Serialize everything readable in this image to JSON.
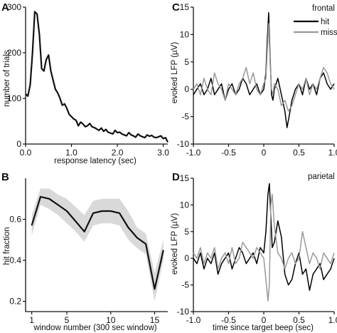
{
  "chart_data": [
    {
      "panel": "A",
      "type": "line",
      "xlabel": "response latency (sec)",
      "ylabel": "number of trials",
      "xlim": [
        0,
        3.1
      ],
      "ylim": [
        0,
        300
      ],
      "xticks": [
        0,
        1.0,
        2.0,
        3.0
      ],
      "xtick_labels": [
        "0.0",
        "1.0",
        "2.0",
        "3.0"
      ],
      "yticks": [
        0,
        100,
        200,
        300
      ],
      "ytick_labels": [
        "0",
        "100",
        "200",
        "300"
      ],
      "series": [
        {
          "color": "#111111",
          "x": [
            0.0,
            0.05,
            0.1,
            0.15,
            0.2,
            0.25,
            0.3,
            0.35,
            0.4,
            0.45,
            0.5,
            0.55,
            0.6,
            0.65,
            0.7,
            0.75,
            0.8,
            0.85,
            0.9,
            0.95,
            1.0,
            1.05,
            1.1,
            1.15,
            1.2,
            1.25,
            1.3,
            1.35,
            1.4,
            1.45,
            1.5,
            1.55,
            1.6,
            1.65,
            1.7,
            1.75,
            1.8,
            1.85,
            1.9,
            1.95,
            2.0,
            2.05,
            2.1,
            2.15,
            2.2,
            2.25,
            2.3,
            2.35,
            2.4,
            2.45,
            2.5,
            2.55,
            2.6,
            2.65,
            2.7,
            2.75,
            2.8,
            2.85,
            2.9,
            2.95,
            3.0,
            3.05,
            3.1
          ],
          "y": [
            110,
            105,
            130,
            200,
            290,
            285,
            240,
            165,
            160,
            185,
            195,
            160,
            140,
            120,
            112,
            100,
            85,
            88,
            78,
            65,
            60,
            55,
            52,
            40,
            48,
            44,
            38,
            40,
            45,
            38,
            36,
            33,
            30,
            35,
            28,
            32,
            26,
            24,
            22,
            30,
            25,
            26,
            22,
            20,
            18,
            25,
            20,
            18,
            15,
            22,
            18,
            16,
            14,
            20,
            17,
            19,
            15,
            14,
            16,
            18,
            12,
            14,
            4
          ]
        }
      ]
    },
    {
      "panel": "B",
      "type": "line",
      "xlabel": "window number (300 sec window)",
      "ylabel": "hit fraction",
      "xlim": [
        0.3,
        16.5
      ],
      "ylim": [
        0.15,
        0.8
      ],
      "xticks": [
        1,
        5,
        10,
        15
      ],
      "xtick_labels": [
        "1",
        "5",
        "10",
        "15"
      ],
      "yticks": [
        0.2,
        0.4,
        0.6
      ],
      "ytick_labels": [
        "0.2",
        "0.4",
        "0.6"
      ],
      "series": [
        {
          "color": "#111111",
          "band_color": "#d9d9d9",
          "x": [
            1,
            2,
            3,
            4,
            5,
            6,
            7,
            8,
            9,
            10,
            11,
            12,
            13,
            14,
            15,
            16
          ],
          "y": [
            0.57,
            0.71,
            0.7,
            0.67,
            0.64,
            0.59,
            0.54,
            0.63,
            0.64,
            0.64,
            0.63,
            0.56,
            0.51,
            0.48,
            0.26,
            0.45
          ],
          "upper": [
            0.62,
            0.75,
            0.75,
            0.72,
            0.7,
            0.66,
            0.62,
            0.69,
            0.7,
            0.7,
            0.7,
            0.64,
            0.56,
            0.53,
            0.34,
            0.5
          ],
          "lower": [
            0.52,
            0.67,
            0.65,
            0.62,
            0.58,
            0.54,
            0.49,
            0.57,
            0.58,
            0.58,
            0.57,
            0.5,
            0.46,
            0.43,
            0.2,
            0.4
          ]
        }
      ]
    },
    {
      "panel": "C",
      "type": "line",
      "annotation": "frontal",
      "xlabel": "",
      "ylabel": "evoked LFP (µV)",
      "xlim": [
        -1.0,
        1.0
      ],
      "ylim": [
        -10,
        15
      ],
      "xticks": [
        -1.0,
        -0.5,
        0,
        0.5,
        1.0
      ],
      "xtick_labels": [
        "-1.0",
        "-0.5",
        "0",
        "0.5",
        "1.0"
      ],
      "yticks": [
        -10,
        -5,
        0,
        5,
        10,
        15
      ],
      "ytick_labels": [
        "-10",
        "-5",
        "0",
        "5",
        "10",
        "15"
      ],
      "legend_position": "top-right",
      "series": [
        {
          "name": "hit",
          "color": "#000000",
          "x": [
            -1.0,
            -0.95,
            -0.9,
            -0.85,
            -0.8,
            -0.75,
            -0.7,
            -0.65,
            -0.6,
            -0.55,
            -0.5,
            -0.45,
            -0.4,
            -0.35,
            -0.3,
            -0.25,
            -0.2,
            -0.15,
            -0.1,
            -0.05,
            0.0,
            0.03,
            0.05,
            0.07,
            0.09,
            0.11,
            0.13,
            0.15,
            0.2,
            0.25,
            0.3,
            0.33,
            0.36,
            0.4,
            0.45,
            0.5,
            0.55,
            0.6,
            0.65,
            0.7,
            0.75,
            0.8,
            0.85,
            0.9,
            0.95,
            1.0
          ],
          "y": [
            -1,
            0,
            1,
            -1,
            0,
            2,
            -1,
            0,
            1,
            -2,
            0,
            1,
            -1,
            0,
            2,
            1,
            -1,
            0,
            1,
            -1,
            0,
            3,
            9,
            14,
            6,
            -1,
            -2,
            0,
            2,
            -1,
            -4,
            -7,
            -5,
            -2,
            0,
            1,
            -1,
            2,
            0,
            1,
            -1,
            2,
            3,
            1,
            0,
            1
          ]
        },
        {
          "name": "miss",
          "color": "#999999",
          "x": [
            -1.0,
            -0.95,
            -0.9,
            -0.85,
            -0.8,
            -0.75,
            -0.7,
            -0.65,
            -0.6,
            -0.55,
            -0.5,
            -0.45,
            -0.4,
            -0.35,
            -0.3,
            -0.25,
            -0.2,
            -0.15,
            -0.1,
            -0.05,
            0.0,
            0.03,
            0.05,
            0.07,
            0.09,
            0.11,
            0.13,
            0.15,
            0.2,
            0.25,
            0.3,
            0.35,
            0.4,
            0.45,
            0.5,
            0.55,
            0.6,
            0.65,
            0.7,
            0.75,
            0.8,
            0.85,
            0.9,
            0.95,
            1.0
          ],
          "y": [
            0,
            1,
            -1,
            2,
            0,
            -1,
            3,
            1,
            0,
            -2,
            1,
            0,
            -1,
            1,
            2,
            4,
            1,
            3,
            0,
            -1,
            1,
            2,
            7,
            12,
            5,
            0,
            -1,
            1,
            0,
            -3,
            -2,
            -4,
            -3,
            -1,
            1,
            0,
            2,
            -1,
            1,
            0,
            2,
            4,
            3,
            1,
            0
          ]
        }
      ]
    },
    {
      "panel": "D",
      "type": "line",
      "annotation": "parietal",
      "xlabel": "time since target beep (sec)",
      "ylabel": "evoked LFP (µV)",
      "xlim": [
        -1.0,
        1.0
      ],
      "ylim": [
        -10,
        15
      ],
      "xticks": [
        -1.0,
        -0.5,
        0,
        0.5,
        1.0
      ],
      "xtick_labels": [
        "-1.0",
        "-0.5",
        "0",
        "0.5",
        "1.0"
      ],
      "yticks": [
        -10,
        -5,
        0,
        5,
        10,
        15
      ],
      "ytick_labels": [
        "-10",
        "-5",
        "0",
        "5",
        "10",
        "15"
      ],
      "series": [
        {
          "name": "hit",
          "color": "#000000",
          "x": [
            -1.0,
            -0.95,
            -0.9,
            -0.85,
            -0.8,
            -0.75,
            -0.7,
            -0.65,
            -0.6,
            -0.55,
            -0.5,
            -0.45,
            -0.4,
            -0.35,
            -0.3,
            -0.25,
            -0.2,
            -0.15,
            -0.1,
            -0.05,
            0.0,
            0.03,
            0.06,
            0.08,
            0.1,
            0.12,
            0.15,
            0.2,
            0.25,
            0.3,
            0.35,
            0.4,
            0.45,
            0.5,
            0.55,
            0.6,
            0.65,
            0.7,
            0.75,
            0.8,
            0.85,
            0.9,
            0.95,
            1.0
          ],
          "y": [
            0,
            -1,
            1,
            -2,
            0,
            -1,
            1,
            -3,
            -1,
            0,
            1,
            -2,
            0,
            2,
            1,
            -1,
            0,
            1,
            -1,
            2,
            1,
            5,
            12,
            14,
            8,
            2,
            3,
            7,
            4,
            -3,
            -5,
            -4,
            -1,
            1,
            -3,
            -2,
            -6,
            -3,
            -2,
            -1,
            -4,
            -3,
            -2,
            0
          ]
        },
        {
          "name": "miss",
          "color": "#999999",
          "x": [
            -1.0,
            -0.95,
            -0.9,
            -0.85,
            -0.8,
            -0.75,
            -0.7,
            -0.65,
            -0.6,
            -0.55,
            -0.5,
            -0.45,
            -0.4,
            -0.35,
            -0.3,
            -0.25,
            -0.2,
            -0.15,
            -0.1,
            -0.05,
            0.0,
            0.03,
            0.06,
            0.08,
            0.1,
            0.12,
            0.15,
            0.2,
            0.25,
            0.3,
            0.35,
            0.4,
            0.45,
            0.5,
            0.55,
            0.6,
            0.65,
            0.7,
            0.75,
            0.8,
            0.85,
            0.9,
            0.95,
            1.0
          ],
          "y": [
            1,
            0,
            2,
            -1,
            1,
            0,
            2,
            -2,
            0,
            1,
            -1,
            2,
            -1,
            0,
            3,
            2,
            1,
            0,
            2,
            1,
            0,
            -4,
            -8,
            -5,
            10,
            12,
            6,
            1,
            0,
            -2,
            0,
            1,
            -1,
            0,
            5,
            2,
            -1,
            1,
            0,
            -2,
            1,
            0,
            -1,
            1
          ]
        }
      ]
    }
  ]
}
